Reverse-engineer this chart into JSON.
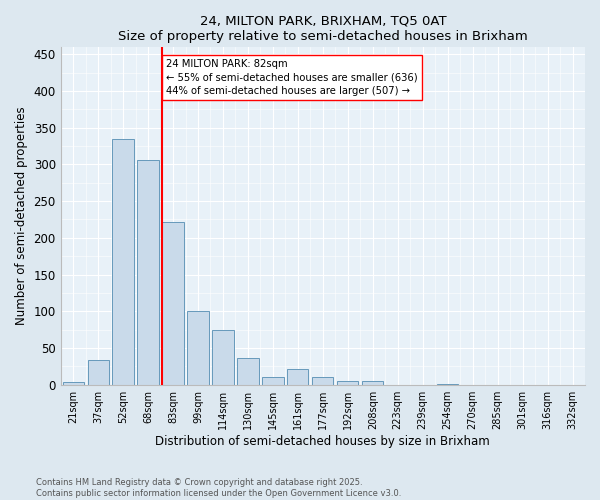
{
  "title1": "24, MILTON PARK, BRIXHAM, TQ5 0AT",
  "title2": "Size of property relative to semi-detached houses in Brixham",
  "xlabel": "Distribution of semi-detached houses by size in Brixham",
  "ylabel": "Number of semi-detached properties",
  "bar_labels": [
    "21sqm",
    "37sqm",
    "52sqm",
    "68sqm",
    "83sqm",
    "99sqm",
    "114sqm",
    "130sqm",
    "145sqm",
    "161sqm",
    "177sqm",
    "192sqm",
    "208sqm",
    "223sqm",
    "239sqm",
    "254sqm",
    "270sqm",
    "285sqm",
    "301sqm",
    "316sqm",
    "332sqm"
  ],
  "bar_values": [
    4,
    33,
    335,
    306,
    222,
    100,
    74,
    37,
    10,
    21,
    10,
    5,
    5,
    0,
    0,
    1,
    0,
    0,
    0,
    0,
    0
  ],
  "bar_color": "#c9daea",
  "bar_edge_color": "#6699bb",
  "marker_color": "red",
  "annotation_line1": "24 MILTON PARK: 82sqm",
  "annotation_line2": "← 55% of semi-detached houses are smaller (636)",
  "annotation_line3": "44% of semi-detached houses are larger (507) →",
  "ylim": [
    0,
    460
  ],
  "yticks": [
    0,
    50,
    100,
    150,
    200,
    250,
    300,
    350,
    400,
    450
  ],
  "footer": "Contains HM Land Registry data © Crown copyright and database right 2025.\nContains public sector information licensed under the Open Government Licence v3.0.",
  "bg_color": "#dde8f0",
  "plot_bg_color": "#e8f1f8"
}
